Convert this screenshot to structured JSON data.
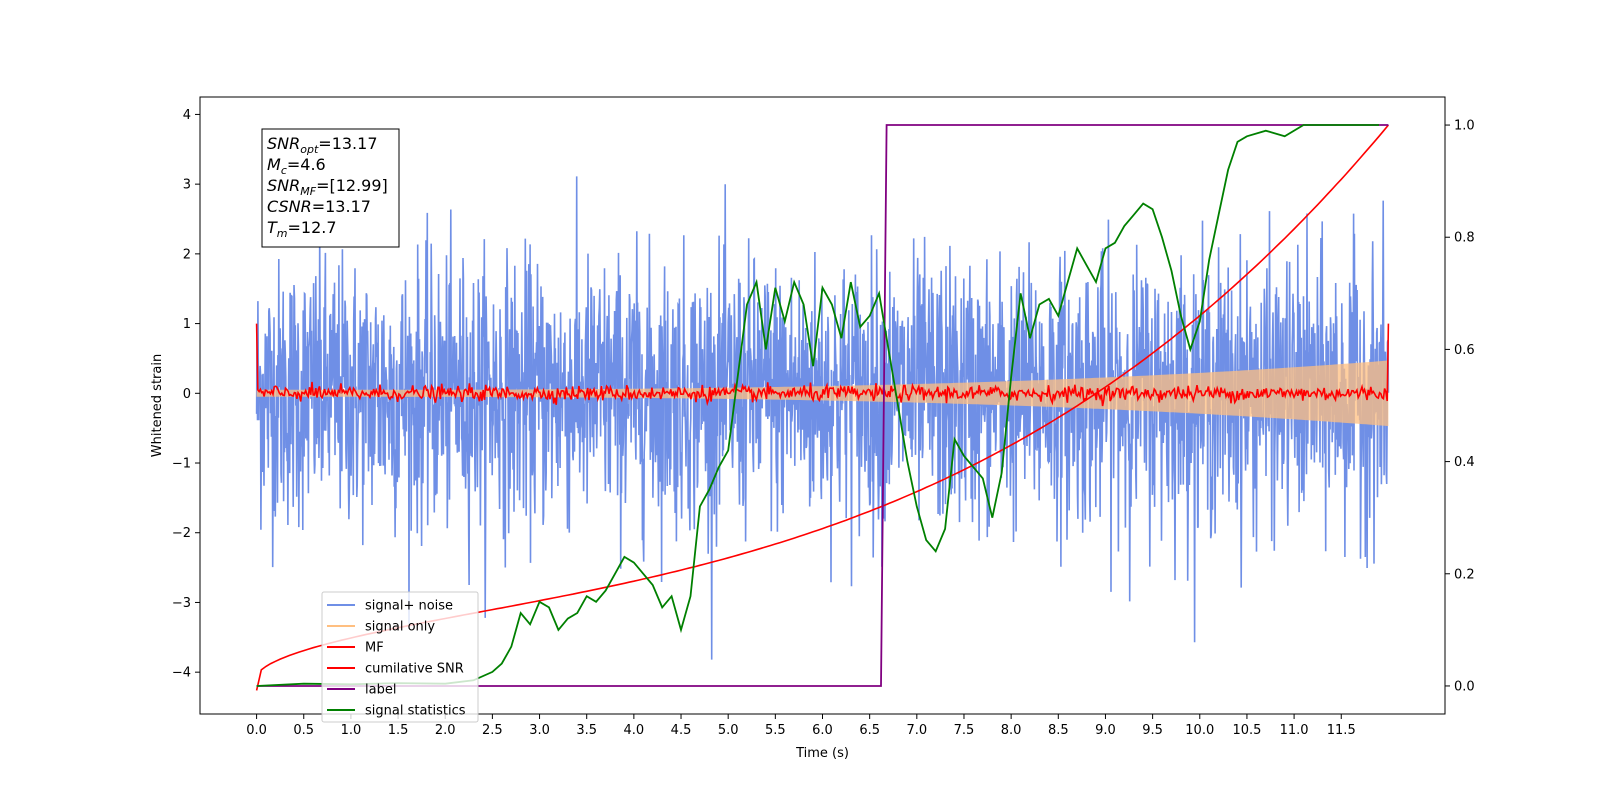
{
  "chart_data": {
    "type": "line",
    "xlabel": "Time (s)",
    "ylabel": "Whitened strain",
    "xlim": [
      -0.6,
      12.6
    ],
    "ylim": [
      -4.6,
      4.25
    ],
    "ylim_right": [
      -0.05,
      1.05
    ],
    "x_ticks": [
      0.0,
      0.5,
      1.0,
      1.5,
      2.0,
      2.5,
      3.0,
      3.5,
      4.0,
      4.5,
      5.0,
      5.5,
      6.0,
      6.5,
      7.0,
      7.5,
      8.0,
      8.5,
      9.0,
      9.5,
      10.0,
      10.5,
      11.0,
      11.5
    ],
    "x_tick_labels": [
      "0.0",
      "0.5",
      "1.0",
      "1.5",
      "2.0",
      "2.5",
      "3.0",
      "3.5",
      "4.0",
      "4.5",
      "5.0",
      "5.5",
      "6.0",
      "6.5",
      "7.0",
      "7.5",
      "8.0",
      "8.5",
      "9.0",
      "9.5",
      "10.0",
      "10.5",
      "11.0",
      "11.5"
    ],
    "y_ticks": [
      4,
      3,
      2,
      1,
      0,
      -1,
      -2,
      -3,
      -4
    ],
    "y_tick_labels": [
      "4",
      "3",
      "2",
      "1",
      "0",
      "−1",
      "−2",
      "−3",
      "−4"
    ],
    "y_right_ticks": [
      1.0,
      0.8,
      0.6,
      0.4,
      0.2,
      0.0
    ],
    "y_right_tick_labels": [
      "1.0",
      "0.8",
      "0.6",
      "0.4",
      "0.2",
      "0.0"
    ],
    "grid": false,
    "legend_position": "lower-left",
    "info_box": {
      "lines": [
        {
          "main": "SNR",
          "sub": "opt",
          "rest": "=13.17"
        },
        {
          "main": "M",
          "sub": "c",
          "rest": "=4.6"
        },
        {
          "main": "SNR",
          "sub": "MF",
          "rest": "=[12.99]"
        },
        {
          "main": "CSNR",
          "sub": "",
          "rest": "=13.17"
        },
        {
          "main": "T",
          "sub": "m",
          "rest": "=12.7"
        }
      ]
    },
    "series": [
      {
        "name": "signal+ noise",
        "color": "#6f8fe6",
        "axis": "left",
        "description_values": {
          "noise_amplitude": 1.2,
          "x_start": 0.0,
          "x_end": 12.0
        }
      },
      {
        "name": "signal only",
        "color": "#ffbf80",
        "axis": "left",
        "envelope_start": 0.05,
        "envelope_end": 0.47
      },
      {
        "name": "MF",
        "color": "#ff0000",
        "axis": "left",
        "x_start": 0.0,
        "x_end": 12.0,
        "edge_value": 1.0
      },
      {
        "name": "cumilative SNR",
        "color": "#ff0000",
        "axis": "right",
        "x": [
          0.0,
          2.0,
          4.0,
          6.0,
          8.0,
          10.0,
          12.0
        ],
        "y": [
          0.015,
          0.13,
          0.23,
          0.33,
          0.45,
          0.63,
          1.0
        ]
      },
      {
        "name": "label",
        "color": "#800080",
        "axis": "right",
        "x": [
          0.0,
          6.62,
          6.68,
          12.0
        ],
        "y": [
          0.0,
          0.0,
          1.0,
          1.0
        ]
      },
      {
        "name": "signal statistics",
        "color": "#008000",
        "axis": "right",
        "x": [
          0.0,
          0.5,
          1.0,
          1.5,
          2.0,
          2.3,
          2.5,
          2.6,
          2.7,
          2.8,
          2.9,
          3.0,
          3.1,
          3.2,
          3.3,
          3.4,
          3.5,
          3.6,
          3.7,
          3.8,
          3.9,
          4.0,
          4.1,
          4.2,
          4.3,
          4.4,
          4.5,
          4.6,
          4.7,
          4.8,
          4.9,
          5.0,
          5.1,
          5.2,
          5.3,
          5.4,
          5.5,
          5.6,
          5.7,
          5.8,
          5.9,
          6.0,
          6.1,
          6.2,
          6.3,
          6.4,
          6.5,
          6.6,
          6.7,
          6.8,
          6.9,
          7.0,
          7.1,
          7.2,
          7.3,
          7.4,
          7.5,
          7.6,
          7.7,
          7.8,
          7.9,
          8.0,
          8.1,
          8.2,
          8.3,
          8.4,
          8.5,
          8.6,
          8.7,
          8.8,
          8.9,
          9.0,
          9.1,
          9.2,
          9.3,
          9.4,
          9.5,
          9.6,
          9.7,
          9.8,
          9.9,
          10.0,
          10.1,
          10.2,
          10.3,
          10.4,
          10.5,
          10.7,
          10.9,
          11.1,
          11.3,
          11.5,
          11.7,
          11.9
        ],
        "y": [
          0.0,
          0.004,
          0.003,
          0.005,
          0.004,
          0.01,
          0.025,
          0.04,
          0.07,
          0.13,
          0.11,
          0.15,
          0.14,
          0.1,
          0.12,
          0.13,
          0.16,
          0.15,
          0.17,
          0.2,
          0.23,
          0.22,
          0.2,
          0.18,
          0.14,
          0.16,
          0.1,
          0.16,
          0.32,
          0.35,
          0.39,
          0.42,
          0.55,
          0.68,
          0.72,
          0.6,
          0.71,
          0.65,
          0.72,
          0.68,
          0.57,
          0.71,
          0.68,
          0.62,
          0.72,
          0.64,
          0.66,
          0.7,
          0.6,
          0.5,
          0.4,
          0.32,
          0.26,
          0.24,
          0.28,
          0.44,
          0.41,
          0.39,
          0.37,
          0.3,
          0.38,
          0.55,
          0.7,
          0.62,
          0.68,
          0.69,
          0.66,
          0.72,
          0.78,
          0.75,
          0.72,
          0.78,
          0.79,
          0.82,
          0.84,
          0.86,
          0.85,
          0.8,
          0.74,
          0.66,
          0.6,
          0.65,
          0.76,
          0.84,
          0.92,
          0.97,
          0.98,
          0.99,
          0.98,
          1.0,
          1.0,
          1.0,
          1.0,
          1.0
        ]
      }
    ]
  }
}
